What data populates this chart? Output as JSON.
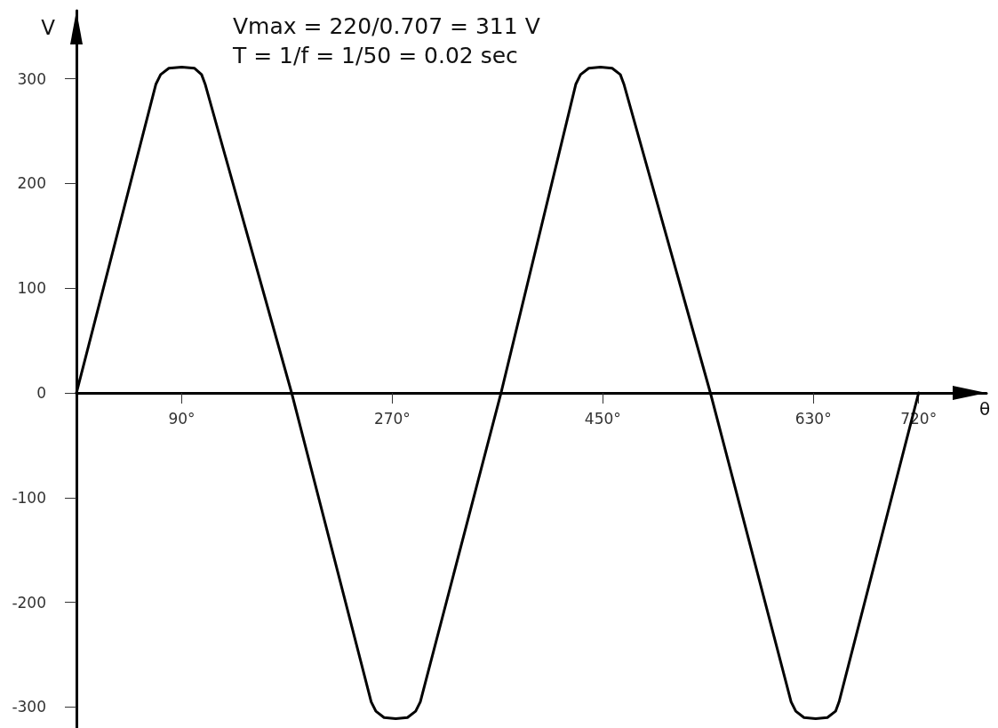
{
  "chart_data": {
    "type": "line",
    "xlabel": "θ",
    "ylabel": "V",
    "annotations": [
      "Vmax = 220/0.707 = 311 V",
      "T = 1/f = 1/50 = 0.02 sec"
    ],
    "series": [
      {
        "color": "#000000",
        "x": [
          0,
          68,
          72,
          79,
          90,
          101,
          107,
          110,
          184,
          252,
          256,
          263,
          273,
          283,
          290,
          294,
          363,
          427,
          431,
          438,
          448,
          458,
          465,
          468,
          542,
          611,
          615,
          622,
          632,
          642,
          649,
          652,
          720
        ],
        "values": [
          0,
          295,
          304,
          310,
          311,
          310,
          304,
          295,
          0,
          -295,
          -304,
          -310,
          -311,
          -310,
          -304,
          -295,
          0,
          295,
          304,
          310,
          311,
          310,
          304,
          295,
          0,
          -295,
          -304,
          -310,
          -311,
          -310,
          -304,
          -295,
          0
        ]
      }
    ],
    "xlim": [
      0,
      778
    ],
    "xticks": [
      {
        "value": 90,
        "label": "90°"
      },
      {
        "value": 270,
        "label": "270°"
      },
      {
        "value": 450,
        "label": "450°"
      },
      {
        "value": 630,
        "label": "630°"
      },
      {
        "value": 720,
        "label": "720°"
      }
    ],
    "ylim": [
      -320,
      365
    ],
    "yticks": [
      -300,
      -200,
      -100,
      0,
      100,
      200,
      300
    ],
    "line_style": "solid"
  }
}
